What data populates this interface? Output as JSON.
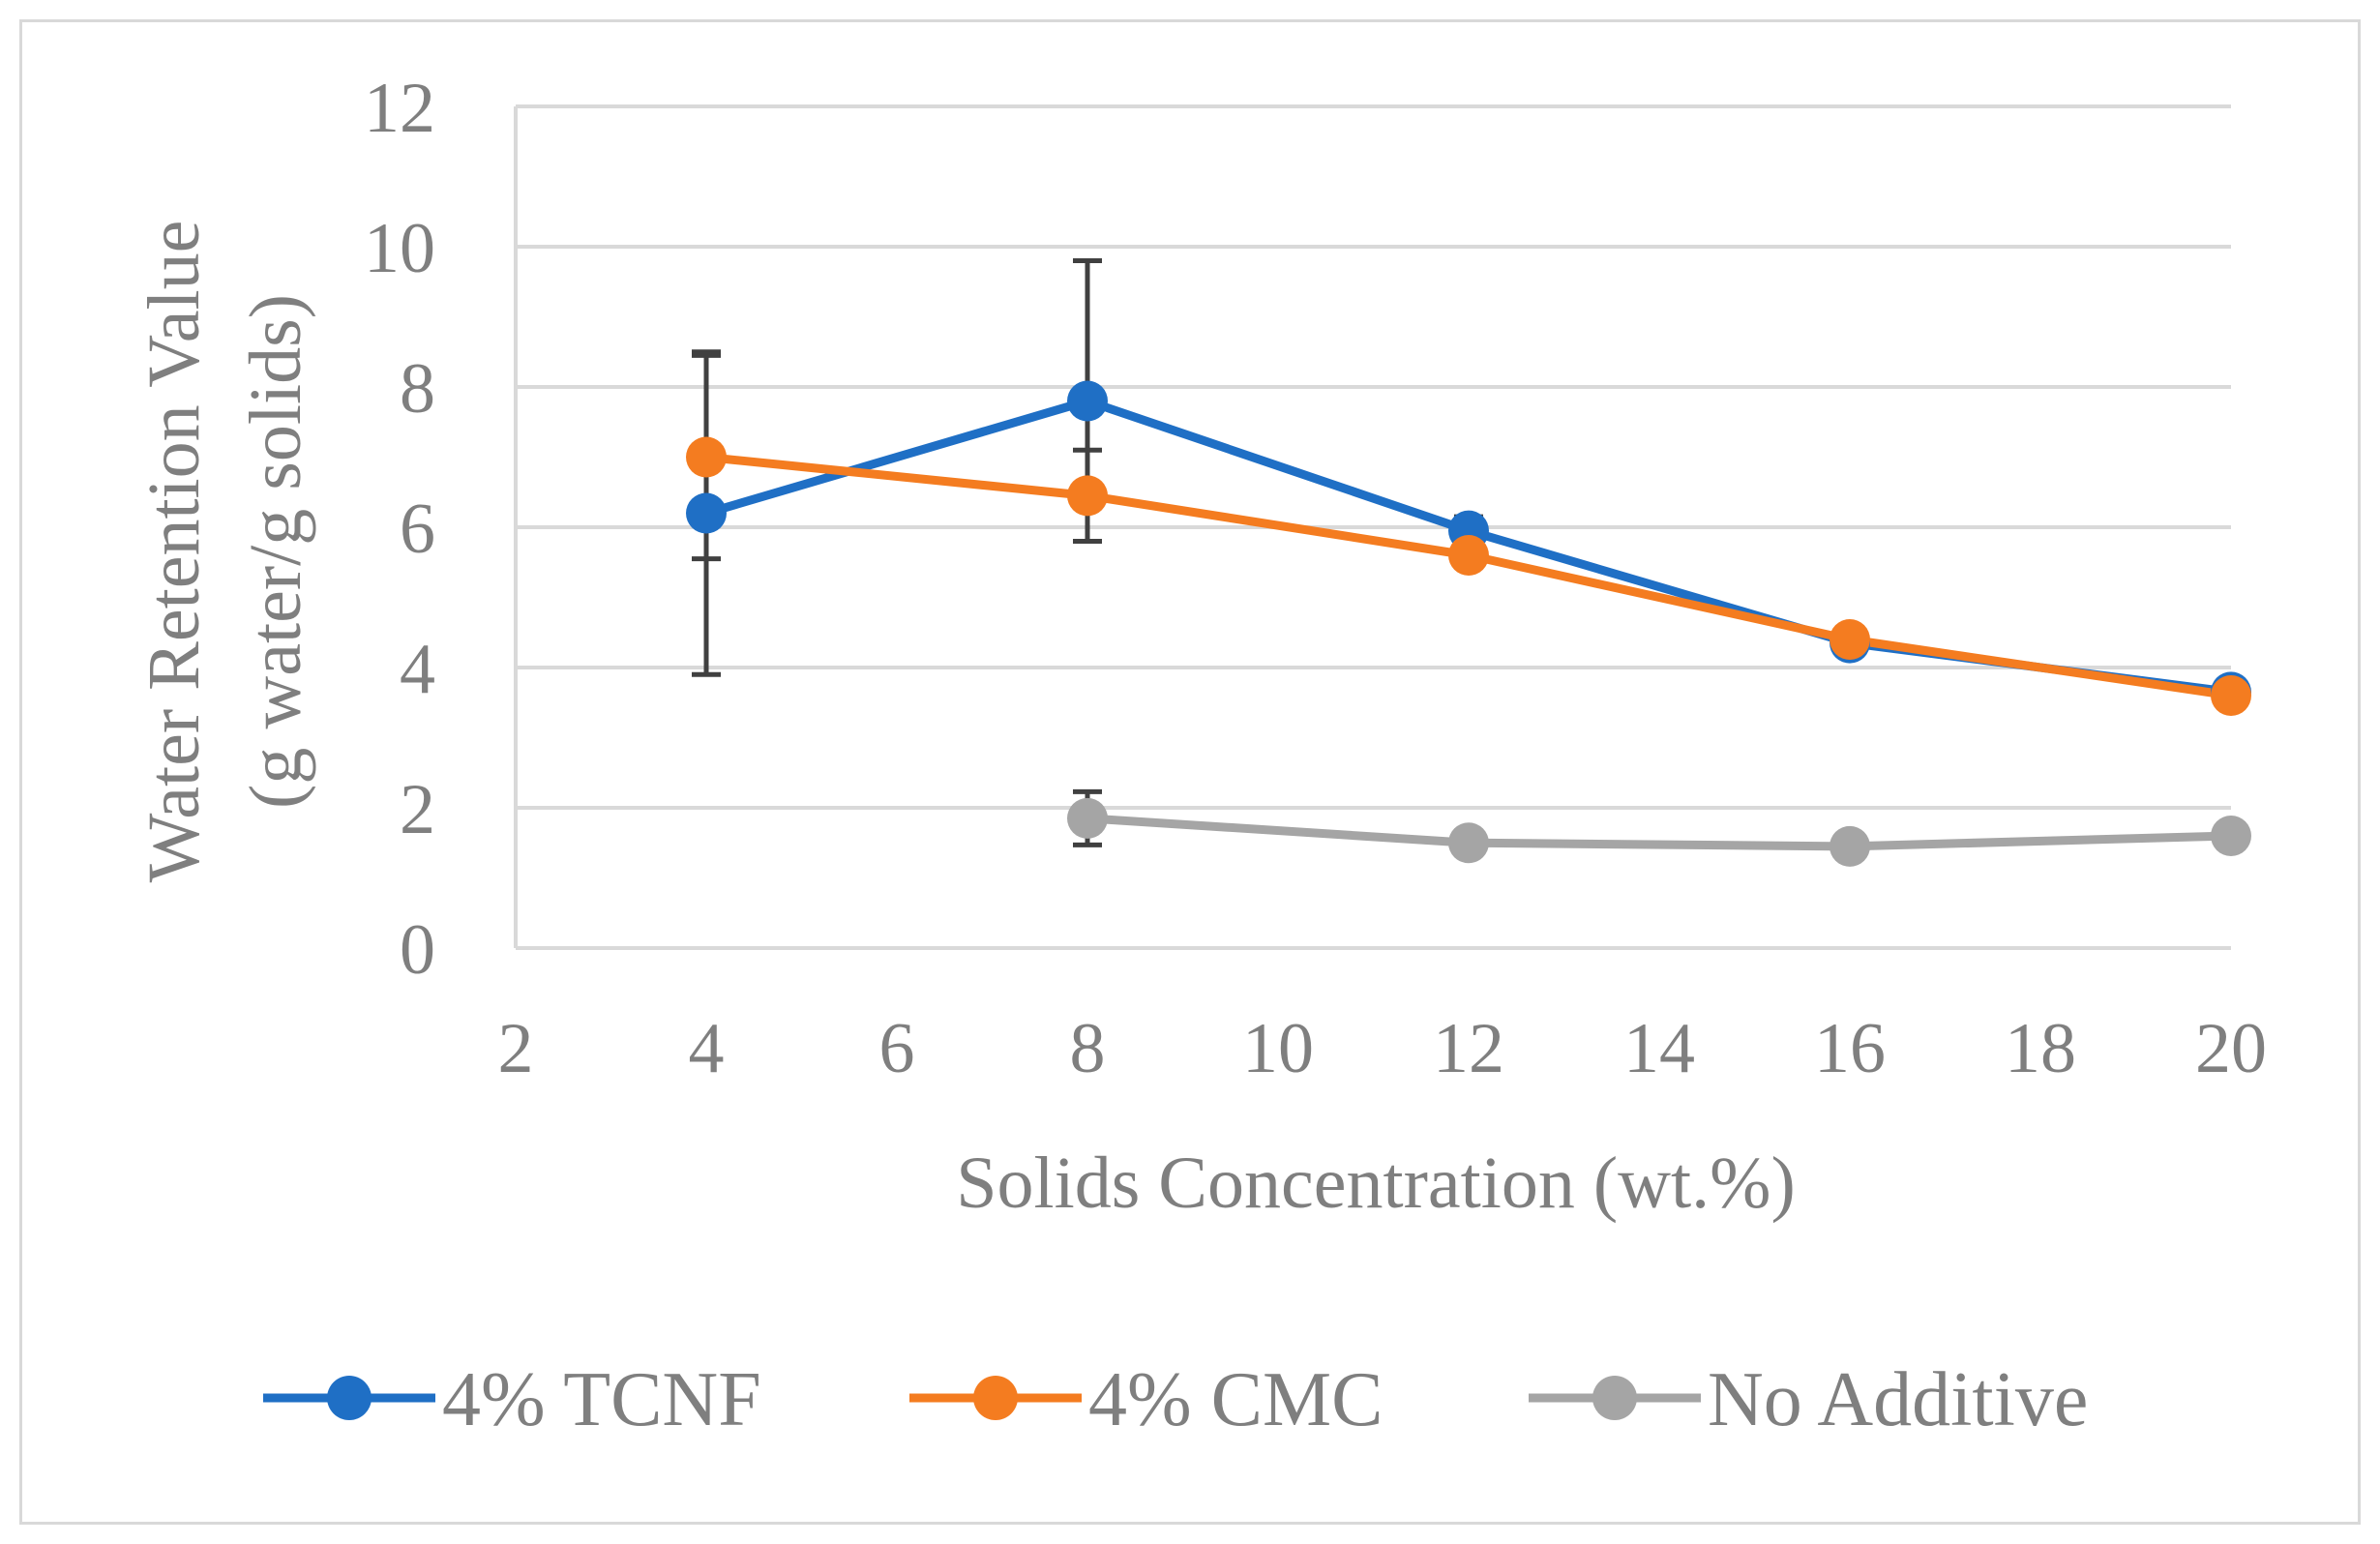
{
  "chart_data": {
    "type": "line",
    "title": "",
    "xlabel": "Solids Concentration (wt.%)",
    "ylabel_line1": "Water Retention Value",
    "ylabel_line2": "(g water/g solids)",
    "xlim": [
      2,
      20
    ],
    "ylim": [
      0,
      12
    ],
    "xticks": [
      2,
      4,
      6,
      8,
      10,
      12,
      14,
      16,
      18,
      20
    ],
    "yticks": [
      0,
      2,
      4,
      6,
      8,
      10,
      12
    ],
    "grid": "horizontal",
    "legend_position": "bottom",
    "series": [
      {
        "name": "4% TCNF",
        "color": "#1f6fc5",
        "x": [
          4,
          8,
          12,
          16,
          20
        ],
        "y": [
          6.2,
          7.8,
          5.95,
          4.35,
          3.65
        ],
        "err": [
          2.3,
          2.0,
          0.2,
          0.1,
          0.05
        ]
      },
      {
        "name": "4% CMC",
        "color": "#f47c20",
        "x": [
          4,
          8,
          12,
          16,
          20
        ],
        "y": [
          7.0,
          6.45,
          5.6,
          4.4,
          3.6
        ],
        "err": [
          1.45,
          0.65,
          0.1,
          0.1,
          0.05
        ]
      },
      {
        "name": "No Additive",
        "color": "#a5a5a5",
        "x": [
          8,
          12,
          16,
          20
        ],
        "y": [
          1.85,
          1.5,
          1.45,
          1.6
        ],
        "err": [
          0.38,
          0.05,
          0.05,
          0.05
        ]
      }
    ],
    "error_bar_color": "#404040"
  }
}
